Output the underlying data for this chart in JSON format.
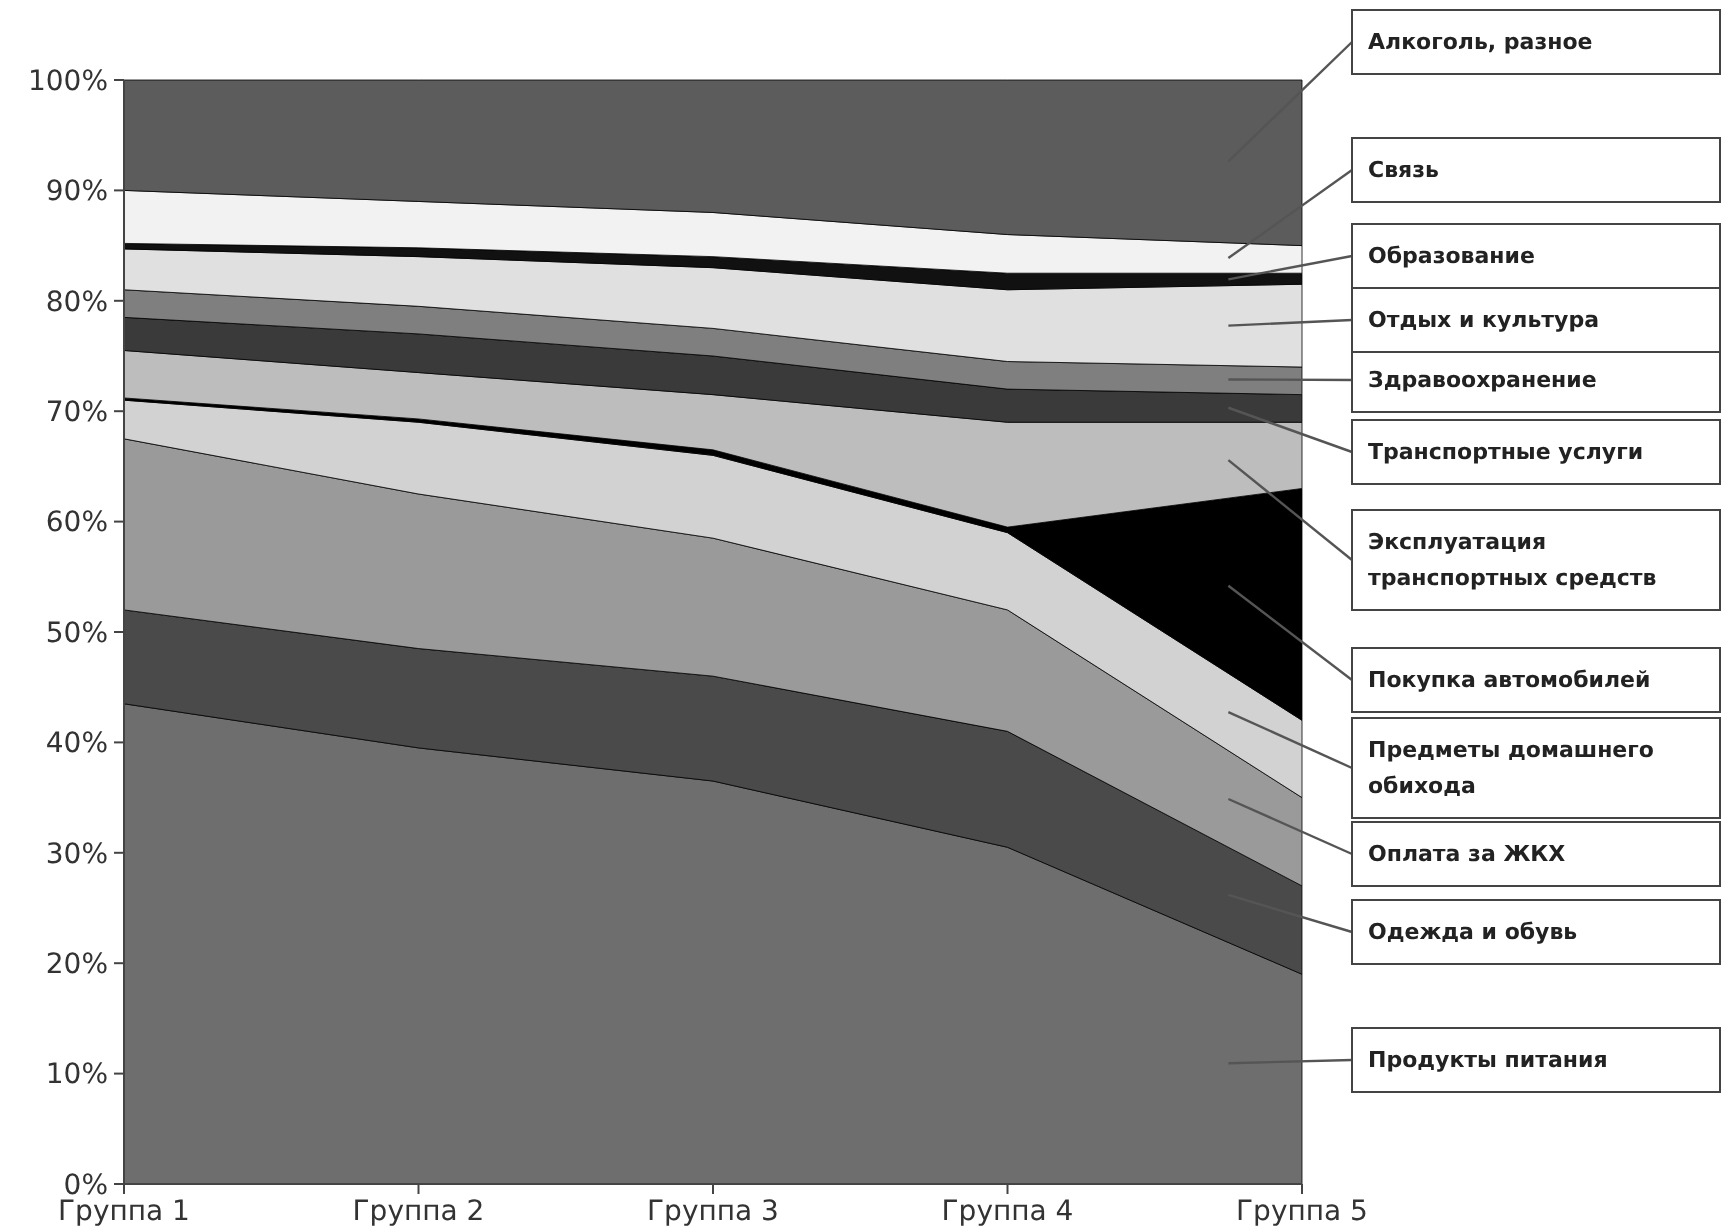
{
  "chart_data": {
    "type": "area",
    "stacked": true,
    "categories": [
      "Группа 1",
      "Группа 2",
      "Группа 3",
      "Группа 4",
      "Группа 5"
    ],
    "ylim": [
      0,
      100
    ],
    "yticks": [
      {
        "value": 0,
        "label": "0%"
      },
      {
        "value": 10,
        "label": "10%"
      },
      {
        "value": 20,
        "label": "20%"
      },
      {
        "value": 30,
        "label": "30%"
      },
      {
        "value": 40,
        "label": "40%"
      },
      {
        "value": 50,
        "label": "50%"
      },
      {
        "value": 60,
        "label": "60%"
      },
      {
        "value": 70,
        "label": "70%"
      },
      {
        "value": 80,
        "label": "80%"
      },
      {
        "value": 90,
        "label": "90%"
      },
      {
        "value": 100,
        "label": "100%"
      }
    ],
    "grid": false,
    "series": [
      {
        "name": "Продукты питания",
        "color": "#6e6e6e",
        "values": [
          43.5,
          39.5,
          36.5,
          30.5,
          19
        ]
      },
      {
        "name": "Одежда и обувь",
        "color": "#4a4a4a",
        "values": [
          8.5,
          9,
          9.5,
          10.5,
          8
        ]
      },
      {
        "name": "Оплата за ЖКХ",
        "color": "#9a9a9a",
        "values": [
          15.5,
          14,
          12.5,
          11,
          8
        ]
      },
      {
        "name": "Предметы домашнего обихода",
        "color": "#d2d2d2",
        "values": [
          3.5,
          6.5,
          7.5,
          7,
          7
        ]
      },
      {
        "name": "Покупка автомобилей",
        "color": "#000000",
        "values": [
          0.2,
          0.3,
          0.5,
          0.5,
          21
        ]
      },
      {
        "name": "Эксплуатация транспортных средств",
        "color": "#bdbdbd",
        "values": [
          4.3,
          4.2,
          5,
          9.5,
          6
        ]
      },
      {
        "name": "Транспортные услуги",
        "color": "#3a3a3a",
        "values": [
          3,
          3.5,
          3.5,
          3,
          2.5
        ]
      },
      {
        "name": "Здравоохранение",
        "color": "#7f7f7f",
        "values": [
          2.5,
          2.5,
          2.5,
          2.5,
          2.5
        ]
      },
      {
        "name": "Отдых и культура",
        "color": "#e0e0e0",
        "values": [
          3.7,
          4.5,
          5.5,
          6.5,
          7.5
        ]
      },
      {
        "name": "Образование",
        "color": "#111111",
        "values": [
          0.5,
          0.8,
          1,
          1.5,
          1
        ]
      },
      {
        "name": "Связь",
        "color": "#f2f2f2",
        "values": [
          4.8,
          4.2,
          4,
          3.5,
          2.5
        ]
      },
      {
        "name": "Алкоголь, разное",
        "color": "#5c5c5c",
        "values": [
          10,
          11,
          12,
          14,
          15
        ]
      }
    ]
  }
}
